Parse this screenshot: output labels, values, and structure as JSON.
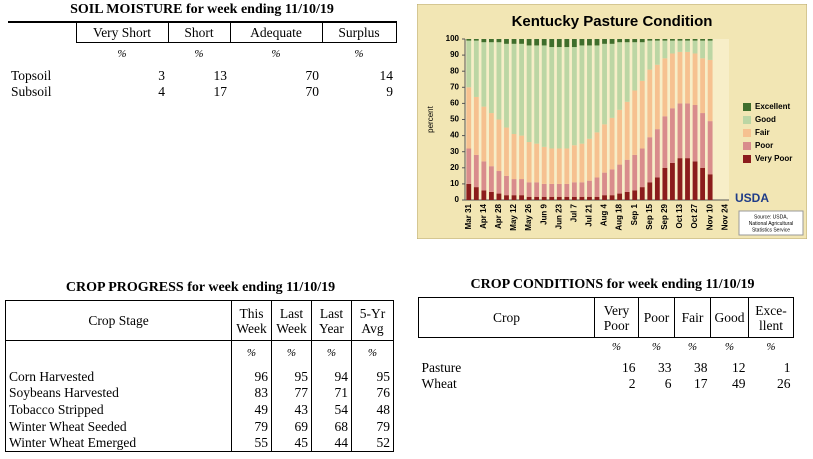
{
  "soil_moisture": {
    "title": "SOIL MOISTURE for week ending 11/10/19",
    "columns": [
      [
        "Very Short"
      ],
      [
        "Short"
      ],
      [
        "Adequate"
      ],
      [
        "Surplus"
      ]
    ],
    "units": [
      "%",
      "%",
      "%",
      "%"
    ],
    "rows": [
      {
        "label": "Topsoil",
        "values": [
          3,
          13,
          70,
          14
        ]
      },
      {
        "label": "Subsoil",
        "values": [
          4,
          17,
          70,
          9
        ]
      }
    ]
  },
  "crop_progress": {
    "title": "CROP PROGRESS for week ending 11/10/19",
    "stub_header": "Crop Stage",
    "columns": [
      [
        "This",
        "Week"
      ],
      [
        "Last",
        "Week"
      ],
      [
        "Last",
        "Year"
      ],
      [
        "5-Yr",
        "Avg"
      ]
    ],
    "units": [
      "%",
      "%",
      "%",
      "%"
    ],
    "rows": [
      {
        "label": "Corn Harvested",
        "values": [
          96,
          95,
          94,
          95
        ]
      },
      {
        "label": "Soybeans Harvested",
        "values": [
          83,
          77,
          71,
          76
        ]
      },
      {
        "label": "Tobacco Stripped",
        "values": [
          49,
          43,
          54,
          48
        ]
      },
      {
        "label": "Winter Wheat Seeded",
        "values": [
          79,
          69,
          68,
          79
        ]
      },
      {
        "label": "Winter Wheat Emerged",
        "values": [
          55,
          45,
          44,
          52
        ]
      }
    ]
  },
  "crop_conditions": {
    "title": "CROP CONDITIONS for week ending 11/10/19",
    "stub_header": "Crop",
    "columns": [
      [
        "Very",
        "Poor"
      ],
      [
        "Poor"
      ],
      [
        "Fair"
      ],
      [
        "Good"
      ],
      [
        "Exce-",
        "llent"
      ]
    ],
    "units": [
      "%",
      "%",
      "%",
      "%",
      "%"
    ],
    "rows": [
      {
        "label": "Pasture",
        "values": [
          16,
          33,
          38,
          12,
          1
        ]
      },
      {
        "label": "Wheat",
        "values": [
          2,
          6,
          17,
          49,
          26
        ]
      }
    ]
  },
  "chart_data": {
    "type": "stacked_bar",
    "title": "Kentucky Pasture Condition",
    "y_label": "percent",
    "categories": [
      "Mar 31",
      null,
      "Apr 14",
      null,
      "Apr 28",
      null,
      "May 12",
      null,
      "May 26",
      null,
      "Jun 9",
      null,
      "Jun 23",
      null,
      "Jul 7",
      null,
      "Jul 21",
      null,
      "Aug 4",
      null,
      "Aug 18",
      null,
      "Sep 1",
      null,
      "Sep 15",
      null,
      "Sep 29",
      null,
      "Oct 13",
      null,
      "Oct 27",
      null,
      "Nov 10",
      null,
      "Nov 24"
    ],
    "series": [
      {
        "name": "Very Poor",
        "color": "#8b1c1c",
        "values": [
          10,
          8,
          6,
          5,
          4,
          3,
          3,
          3,
          2,
          2,
          2,
          2,
          2,
          2,
          2,
          2,
          2,
          2,
          3,
          3,
          4,
          5,
          6,
          8,
          11,
          14,
          20,
          23,
          26,
          26,
          24,
          20,
          16,
          null,
          null
        ]
      },
      {
        "name": "Poor",
        "color": "#d98c8c",
        "values": [
          22,
          20,
          18,
          16,
          14,
          12,
          10,
          10,
          9,
          9,
          8,
          8,
          8,
          8,
          9,
          9,
          10,
          12,
          14,
          16,
          18,
          20,
          22,
          24,
          28,
          30,
          32,
          34,
          34,
          34,
          35,
          34,
          33,
          null,
          null
        ]
      },
      {
        "name": "Fair",
        "color": "#f6c190",
        "values": [
          38,
          36,
          34,
          33,
          32,
          30,
          28,
          27,
          25,
          24,
          23,
          22,
          22,
          22,
          23,
          24,
          26,
          28,
          30,
          32,
          34,
          36,
          40,
          42,
          42,
          40,
          36,
          34,
          32,
          32,
          32,
          34,
          38,
          null,
          null
        ]
      },
      {
        "name": "Good",
        "color": "#bcd6a4",
        "values": [
          29,
          35,
          40,
          44,
          48,
          52,
          56,
          57,
          60,
          61,
          63,
          63,
          63,
          63,
          61,
          61,
          58,
          54,
          50,
          46,
          42,
          37,
          30,
          24,
          18,
          15,
          11,
          8,
          7,
          7,
          8,
          11,
          12,
          null,
          null
        ]
      },
      {
        "name": "Excellent",
        "color": "#3f6e2c",
        "values": [
          1,
          1,
          2,
          2,
          2,
          3,
          3,
          3,
          4,
          4,
          4,
          5,
          5,
          5,
          5,
          4,
          4,
          4,
          3,
          3,
          2,
          2,
          2,
          2,
          1,
          1,
          1,
          1,
          1,
          1,
          1,
          1,
          1,
          null,
          null
        ]
      }
    ],
    "ylim": [
      0,
      100
    ],
    "yticks": [
      0,
      10,
      20,
      30,
      40,
      50,
      60,
      70,
      80,
      90,
      100
    ],
    "legend": "right",
    "logo": "USDA",
    "source": [
      "Source: USDA,",
      "National Agricultural",
      "Statistics Service"
    ]
  }
}
